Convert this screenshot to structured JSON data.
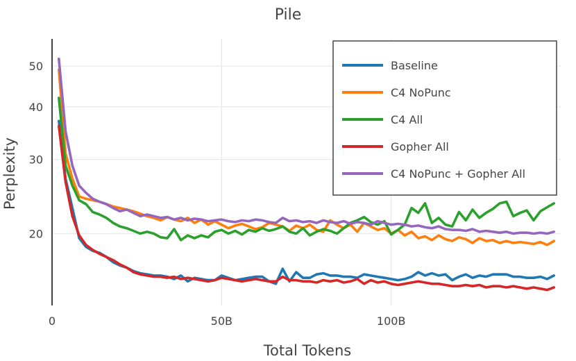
{
  "chart_data": {
    "type": "line",
    "title": "Pile",
    "xlabel": "Total Tokens",
    "ylabel": "Perplexity",
    "x_scale": "linear",
    "y_scale": "log",
    "xlim": [
      0,
      150
    ],
    "ylim": [
      13.5,
      58
    ],
    "grid": true,
    "legend_position": "top-right",
    "x_ticks": [
      {
        "value": 0,
        "label": "0"
      },
      {
        "value": 50,
        "label": "50B"
      },
      {
        "value": 100,
        "label": "100B"
      }
    ],
    "y_ticks": [
      {
        "value": 20,
        "label": "20"
      },
      {
        "value": 30,
        "label": "30"
      },
      {
        "value": 40,
        "label": "40"
      },
      {
        "value": 50,
        "label": "50"
      }
    ],
    "x": [
      2,
      4,
      6,
      8,
      10,
      12,
      14,
      16,
      18,
      20,
      22,
      24,
      26,
      28,
      30,
      32,
      34,
      36,
      38,
      40,
      42,
      44,
      46,
      48,
      50,
      52,
      54,
      56,
      58,
      60,
      62,
      64,
      66,
      68,
      70,
      72,
      74,
      76,
      78,
      80,
      82,
      84,
      86,
      88,
      90,
      92,
      94,
      96,
      98,
      100,
      102,
      104,
      106,
      108,
      110,
      112,
      114,
      116,
      118,
      120,
      122,
      124,
      126,
      128,
      130,
      132,
      134,
      136,
      138,
      140,
      142,
      144,
      146,
      148
    ],
    "series": [
      {
        "name": "Baseline",
        "color": "#1f77b4",
        "values": [
          37.0,
          27.0,
          23.0,
          19.5,
          18.6,
          18.2,
          18.0,
          17.6,
          17.1,
          16.8,
          16.6,
          16.3,
          16.1,
          16.0,
          15.9,
          15.9,
          15.8,
          15.6,
          15.9,
          15.4,
          15.7,
          15.6,
          15.5,
          15.5,
          15.9,
          15.7,
          15.5,
          15.6,
          15.7,
          15.8,
          15.8,
          15.4,
          15.2,
          16.5,
          15.4,
          16.2,
          15.7,
          15.7,
          16.0,
          16.1,
          15.9,
          15.9,
          15.8,
          15.8,
          15.7,
          16.0,
          15.9,
          15.8,
          15.7,
          15.6,
          15.5,
          15.6,
          15.8,
          16.2,
          15.9,
          16.1,
          15.9,
          16.0,
          15.5,
          15.8,
          16.0,
          15.7,
          15.9,
          15.8,
          16.0,
          16.0,
          16.0,
          15.8,
          15.8,
          15.7,
          15.7,
          15.8,
          15.6,
          15.9
        ]
      },
      {
        "name": "C4 NoPunc",
        "color": "#ff7f0e",
        "values": [
          49.0,
          31.0,
          27.0,
          24.5,
          24.2,
          24.0,
          23.8,
          23.5,
          23.2,
          23.0,
          22.8,
          22.6,
          22.3,
          22.0,
          21.8,
          21.5,
          21.9,
          21.6,
          21.4,
          21.8,
          21.2,
          21.6,
          21.0,
          21.4,
          21.0,
          20.6,
          20.9,
          21.1,
          20.8,
          20.5,
          20.7,
          21.2,
          21.0,
          20.8,
          20.3,
          20.9,
          20.6,
          21.0,
          20.4,
          20.2,
          21.5,
          21.0,
          20.6,
          21.0,
          20.2,
          21.2,
          20.8,
          20.4,
          20.6,
          20.0,
          20.4,
          19.8,
          20.2,
          19.5,
          19.7,
          19.3,
          19.8,
          19.4,
          19.2,
          19.6,
          19.4,
          19.0,
          19.5,
          19.2,
          19.3,
          19.0,
          19.2,
          19.0,
          19.1,
          19.0,
          18.9,
          19.1,
          18.8,
          19.2
        ]
      },
      {
        "name": "C4 All",
        "color": "#2ca02c",
        "values": [
          42.0,
          29.0,
          26.0,
          24.0,
          23.5,
          22.5,
          22.2,
          21.8,
          21.2,
          20.8,
          20.6,
          20.3,
          20.0,
          20.2,
          20.0,
          19.6,
          19.5,
          20.5,
          19.3,
          19.8,
          19.5,
          19.8,
          19.6,
          20.2,
          20.4,
          20.0,
          20.3,
          19.9,
          20.4,
          20.2,
          20.6,
          20.3,
          20.5,
          20.8,
          20.2,
          20.0,
          20.6,
          19.8,
          20.2,
          20.5,
          20.3,
          20.0,
          20.6,
          21.2,
          21.5,
          21.9,
          21.3,
          21.0,
          21.4,
          19.9,
          20.4,
          21.0,
          23.0,
          22.4,
          23.6,
          21.2,
          21.8,
          21.0,
          20.8,
          22.5,
          21.5,
          22.8,
          21.8,
          22.4,
          22.9,
          23.6,
          23.8,
          22.0,
          22.4,
          22.7,
          21.5,
          22.6,
          23.1,
          23.6
        ]
      },
      {
        "name": "Gopher All",
        "color": "#d62728",
        "values": [
          36.0,
          26.5,
          22.0,
          19.8,
          18.8,
          18.3,
          17.9,
          17.6,
          17.3,
          16.9,
          16.6,
          16.2,
          16.0,
          15.9,
          15.8,
          15.8,
          15.7,
          15.8,
          15.6,
          15.7,
          15.6,
          15.5,
          15.4,
          15.5,
          15.7,
          15.6,
          15.5,
          15.4,
          15.5,
          15.6,
          15.5,
          15.4,
          15.4,
          15.8,
          15.5,
          15.5,
          15.4,
          15.4,
          15.3,
          15.5,
          15.4,
          15.5,
          15.3,
          15.4,
          15.6,
          15.2,
          15.5,
          15.3,
          15.4,
          15.2,
          15.1,
          15.2,
          15.3,
          15.4,
          15.3,
          15.2,
          15.2,
          15.1,
          15.0,
          15.0,
          15.1,
          15.0,
          15.1,
          14.9,
          15.0,
          15.0,
          14.9,
          15.0,
          14.9,
          14.8,
          14.9,
          14.8,
          14.7,
          14.9
        ]
      },
      {
        "name": "C4 NoPunc + Gopher All",
        "color": "#9467bd",
        "values": [
          52.0,
          35.0,
          29.0,
          26.0,
          25.0,
          24.2,
          23.8,
          23.5,
          23.0,
          22.6,
          22.8,
          22.4,
          22.0,
          22.2,
          22.0,
          21.8,
          21.9,
          21.6,
          21.8,
          21.5,
          21.7,
          21.6,
          21.4,
          21.5,
          21.6,
          21.4,
          21.3,
          21.5,
          21.4,
          21.6,
          21.5,
          21.3,
          21.2,
          21.8,
          21.4,
          21.5,
          21.3,
          21.4,
          21.2,
          21.5,
          21.3,
          21.2,
          21.4,
          21.1,
          21.3,
          21.2,
          21.0,
          21.4,
          21.2,
          21.0,
          21.1,
          21.0,
          20.8,
          20.9,
          20.7,
          20.6,
          20.8,
          20.5,
          20.4,
          20.4,
          20.3,
          20.5,
          20.2,
          20.3,
          20.2,
          20.1,
          20.2,
          20.0,
          20.1,
          20.1,
          20.0,
          20.1,
          20.0,
          20.2
        ]
      }
    ]
  }
}
